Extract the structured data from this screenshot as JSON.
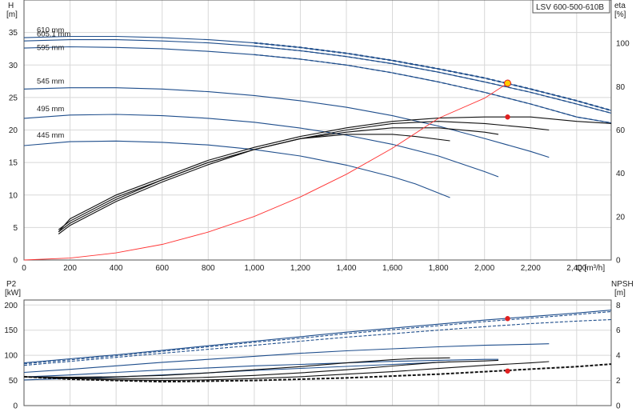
{
  "chart_data": [
    {
      "type": "line",
      "title": "LSV 600-500-610B",
      "ylabel_left": "H",
      "ylabel_left_unit": "[m]",
      "ylabel_right": "eta",
      "ylabel_right_unit": "[%]",
      "xlabel": "Q [m³/h]",
      "xlim": [
        0,
        2550
      ],
      "ylim_left": [
        0,
        40
      ],
      "ylim_right": [
        0,
        120
      ],
      "x_ticks": [
        0,
        200,
        400,
        600,
        800,
        1000,
        1200,
        1400,
        1600,
        1800,
        2000,
        2200,
        2400
      ],
      "x_tick_labels": [
        "0",
        "200",
        "400",
        "600",
        "800",
        "1,000",
        "1,200",
        "1,400",
        "1,600",
        "1,800",
        "2,000",
        "2,200",
        "2,400"
      ],
      "y_left_ticks": [
        0,
        5,
        10,
        15,
        20,
        25,
        30,
        35
      ],
      "y_right_ticks": [
        0,
        20,
        40,
        60,
        80,
        100
      ],
      "grid": true,
      "head_series": [
        {
          "name": "610 mm",
          "x": [
            0,
            200,
            400,
            600,
            800,
            1000,
            1200,
            1400,
            1600,
            1800,
            2000,
            2200,
            2400,
            2550
          ],
          "y": [
            34.2,
            34.4,
            34.4,
            34.2,
            33.9,
            33.4,
            32.7,
            31.8,
            30.7,
            29.4,
            28.0,
            26.3,
            24.5,
            23.0
          ]
        },
        {
          "name": "605.1 mm",
          "x": [
            0,
            200,
            400,
            600,
            800,
            1000,
            1200,
            1400,
            1600,
            1800,
            2000,
            2200,
            2400,
            2550
          ],
          "y": [
            33.7,
            33.9,
            33.9,
            33.7,
            33.4,
            32.9,
            32.2,
            31.3,
            30.2,
            28.9,
            27.4,
            25.8,
            24.0,
            22.6
          ]
        },
        {
          "name": "595 mm",
          "x": [
            0,
            200,
            400,
            600,
            800,
            1000,
            1200,
            1400,
            1600,
            1800,
            2000,
            2200,
            2400,
            2550
          ],
          "y": [
            32.6,
            32.8,
            32.7,
            32.5,
            32.1,
            31.6,
            30.9,
            30.0,
            28.8,
            27.4,
            25.8,
            24.0,
            22.0,
            21.1
          ]
        },
        {
          "name": "545 mm",
          "x": [
            0,
            200,
            400,
            600,
            800,
            1000,
            1200,
            1400,
            1600,
            1800,
            2000,
            2200,
            2280
          ],
          "y": [
            26.3,
            26.5,
            26.5,
            26.3,
            25.9,
            25.3,
            24.5,
            23.5,
            22.2,
            20.6,
            18.7,
            16.7,
            15.8
          ]
        },
        {
          "name": "495 mm",
          "x": [
            0,
            200,
            400,
            600,
            800,
            1000,
            1200,
            1400,
            1600,
            1800,
            2000,
            2060
          ],
          "y": [
            21.8,
            22.3,
            22.4,
            22.2,
            21.8,
            21.2,
            20.3,
            19.2,
            17.8,
            16.0,
            13.6,
            12.8
          ]
        },
        {
          "name": "445 mm",
          "x": [
            0,
            200,
            400,
            600,
            800,
            1000,
            1200,
            1400,
            1600,
            1700,
            1850
          ],
          "y": [
            17.6,
            18.2,
            18.3,
            18.1,
            17.7,
            17.0,
            16.0,
            14.6,
            12.8,
            11.7,
            9.6
          ]
        }
      ],
      "eta_series": [
        {
          "x": [
            150,
            200,
            400,
            600,
            800,
            1000,
            1200,
            1400,
            1600,
            1800,
            2000,
            2200,
            2400,
            2550
          ],
          "y": [
            13,
            19,
            30,
            38,
            46,
            52,
            57,
            61,
            64,
            65.5,
            66,
            66,
            64,
            63
          ]
        },
        {
          "x": [
            150,
            200,
            400,
            600,
            800,
            1000,
            1200,
            1400,
            1600,
            1800,
            2000,
            2200,
            2280
          ],
          "y": [
            14,
            18,
            29,
            37,
            45,
            51,
            56,
            60,
            63,
            64,
            63,
            61,
            60
          ]
        },
        {
          "x": [
            150,
            200,
            400,
            600,
            800,
            1000,
            1200,
            1400,
            1600,
            1800,
            2000,
            2060
          ],
          "y": [
            13,
            17,
            28,
            37,
            45,
            51,
            56,
            59,
            61,
            61,
            59,
            58
          ]
        },
        {
          "x": [
            150,
            200,
            400,
            600,
            800,
            1000,
            1200,
            1400,
            1600,
            1700,
            1850
          ],
          "y": [
            12,
            16,
            27,
            36,
            44,
            51,
            56,
            58,
            58,
            57,
            55
          ]
        }
      ],
      "system_curve": {
        "x": [
          0,
          200,
          400,
          600,
          800,
          1000,
          1200,
          1400,
          1600,
          1800,
          2000,
          2100
        ],
        "y": [
          0,
          0.3,
          1.1,
          2.4,
          4.3,
          6.7,
          9.7,
          13.2,
          17.2,
          21.8,
          24.9,
          27.2
        ]
      },
      "duty_point": {
        "x": 2100,
        "y": 27.2
      },
      "eta_point": {
        "x": 2100,
        "y": 66
      }
    },
    {
      "type": "line",
      "ylabel_left": "P2",
      "ylabel_left_unit": "[kW]",
      "ylabel_right": "NPSH",
      "ylabel_right_unit": "[m]",
      "xlim": [
        0,
        2550
      ],
      "ylim_left": [
        0,
        210
      ],
      "ylim_right": [
        0,
        8.4
      ],
      "y_left_ticks": [
        0,
        50,
        100,
        150,
        200
      ],
      "y_right_ticks": [
        0,
        2,
        4,
        6,
        8
      ],
      "grid": true,
      "power_series": [
        {
          "x": [
            0,
            200,
            400,
            600,
            800,
            1000,
            1200,
            1400,
            1600,
            1800,
            2000,
            2200,
            2400,
            2550
          ],
          "y": [
            85,
            93,
            101,
            110,
            119,
            128,
            137,
            146,
            154,
            162,
            170,
            177,
            184,
            190
          ]
        },
        {
          "x": [
            0,
            200,
            400,
            600,
            800,
            1000,
            1200,
            1400,
            1600,
            1800,
            2000,
            2200,
            2400,
            2550
          ],
          "y": [
            83,
            91,
            99,
            108,
            117,
            126,
            134,
            143,
            151,
            159,
            167,
            174,
            181,
            187
          ]
        },
        {
          "x": [
            0,
            200,
            400,
            600,
            800,
            1000,
            1200,
            1400,
            1600,
            1800,
            2000,
            2200,
            2400,
            2550
          ],
          "y": [
            80,
            88,
            96,
            104,
            112,
            120,
            128,
            136,
            143,
            150,
            157,
            163,
            168,
            171
          ]
        },
        {
          "x": [
            0,
            200,
            400,
            600,
            800,
            1000,
            1200,
            1400,
            1600,
            1800,
            2000,
            2200,
            2280
          ],
          "y": [
            66,
            72,
            79,
            86,
            92,
            98,
            104,
            109,
            113,
            117,
            120,
            122,
            123
          ]
        },
        {
          "x": [
            0,
            200,
            400,
            600,
            800,
            1000,
            1200,
            1400,
            1600,
            1800,
            2000,
            2060
          ],
          "y": [
            57,
            61,
            66,
            71,
            75,
            79,
            82,
            85,
            88,
            90,
            92,
            92
          ]
        },
        {
          "x": [
            0,
            200,
            400,
            600,
            800,
            1000,
            1200,
            1400,
            1600,
            1700,
            1850
          ],
          "y": [
            51,
            54,
            57,
            61,
            65,
            70,
            74,
            78,
            82,
            84,
            87
          ]
        }
      ],
      "npsh_series": [
        {
          "x": [
            0,
            200,
            400,
            600,
            800,
            1000,
            1200,
            1400,
            1600,
            1800,
            2000,
            2200,
            2400,
            2550
          ],
          "y": [
            2.3,
            2.1,
            2.0,
            1.9,
            1.95,
            2.0,
            2.1,
            2.2,
            2.35,
            2.5,
            2.7,
            2.9,
            3.1,
            3.3
          ]
        },
        {
          "x": [
            0,
            200,
            400,
            600,
            800,
            1000,
            1200,
            1400,
            1600,
            1800,
            2000,
            2200,
            2280
          ],
          "y": [
            2.3,
            2.15,
            2.05,
            2.0,
            2.05,
            2.15,
            2.3,
            2.5,
            2.7,
            2.95,
            3.2,
            3.4,
            3.5
          ]
        },
        {
          "x": [
            0,
            200,
            400,
            600,
            800,
            1000,
            1200,
            1400,
            1600,
            1800,
            2000,
            2060
          ],
          "y": [
            2.3,
            2.2,
            2.15,
            2.15,
            2.25,
            2.4,
            2.6,
            2.85,
            3.15,
            3.45,
            3.55,
            3.6
          ]
        },
        {
          "x": [
            0,
            200,
            400,
            600,
            800,
            1000,
            1200,
            1400,
            1600,
            1700,
            1850
          ],
          "y": [
            2.3,
            2.25,
            2.3,
            2.4,
            2.6,
            2.85,
            3.1,
            3.4,
            3.65,
            3.75,
            3.8
          ]
        }
      ],
      "power_point": {
        "x": 2100,
        "y": 173
      },
      "npsh_point": {
        "x": 2100,
        "y": 2.75
      }
    }
  ],
  "labels": {
    "title": "LSV 600-500-610B",
    "top_y_left": "H",
    "top_y_left_unit": "[m]",
    "top_y_right": "eta",
    "top_y_right_unit": "[%]",
    "x_axis": "Q [m³/h]",
    "bot_y_left": "P2",
    "bot_y_left_unit": "[kW]",
    "bot_y_right": "NPSH",
    "bot_y_right_unit": "[m]"
  },
  "colors": {
    "head": "#1f4e8c",
    "efficiency": "#111111",
    "system": "#ff3333",
    "point": "#e02020",
    "duty_point": "#ffcc00"
  }
}
